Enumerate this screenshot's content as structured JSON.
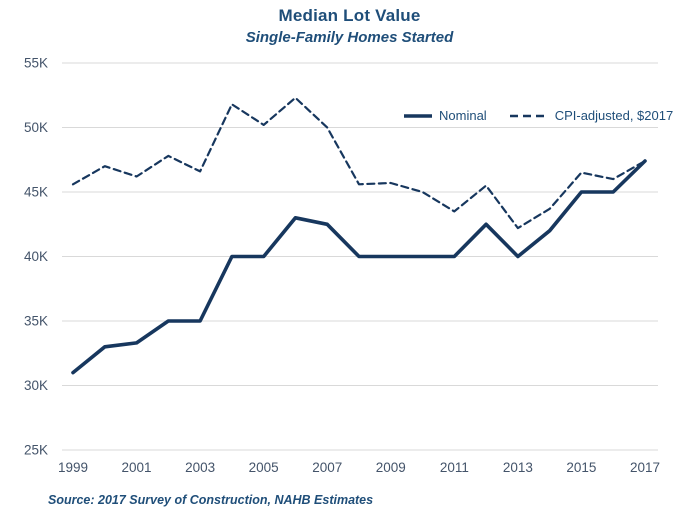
{
  "header": {
    "title": "Median Lot Value",
    "subtitle": "Single-Family Homes Started"
  },
  "legend": {
    "items": [
      {
        "label": "Nominal",
        "style": "solid"
      },
      {
        "label": "CPI-adjusted, $2017",
        "style": "dashed"
      }
    ]
  },
  "footer": {
    "source": "Source: 2017 Survey of Construction, NAHB Estimates"
  },
  "colors": {
    "line": "#17375E",
    "title_text": "#1F4E79",
    "axis_text": "#44546A",
    "gridline": "#D9D9D9",
    "background": "#FFFFFF"
  },
  "chart_data": {
    "type": "line",
    "title": "Median Lot Value",
    "subtitle": "Single-Family Homes Started",
    "x": [
      1999,
      2000,
      2001,
      2002,
      2003,
      2004,
      2005,
      2006,
      2007,
      2008,
      2009,
      2010,
      2011,
      2012,
      2013,
      2014,
      2015,
      2016,
      2017
    ],
    "series": [
      {
        "name": "Nominal",
        "style": "solid",
        "values": [
          31,
          33,
          33.3,
          35,
          35,
          40,
          40,
          43,
          42.5,
          40,
          40,
          40,
          40,
          42.5,
          40,
          42,
          45,
          45,
          47.4
        ]
      },
      {
        "name": "CPI-adjusted, $2017",
        "style": "dashed",
        "values": [
          45.6,
          47,
          46.2,
          47.8,
          46.6,
          51.8,
          50.2,
          52.3,
          50,
          45.6,
          45.7,
          45,
          43.5,
          45.5,
          42.2,
          43.7,
          46.5,
          46,
          47.4
        ]
      }
    ],
    "y_ticks": [
      {
        "value": 55,
        "label": "55K"
      },
      {
        "value": 50,
        "label": "50K"
      },
      {
        "value": 45,
        "label": "45K"
      },
      {
        "value": 40,
        "label": "40K"
      },
      {
        "value": 35,
        "label": "35K"
      },
      {
        "value": 30,
        "label": "30K"
      },
      {
        "value": 25,
        "label": "25K"
      }
    ],
    "x_ticks": [
      1999,
      2001,
      2003,
      2005,
      2007,
      2009,
      2011,
      2013,
      2015,
      2017
    ],
    "ylim": [
      25,
      55
    ],
    "xlim": [
      1999,
      2017
    ],
    "grid": true,
    "legend_position": "top-right",
    "units": "USD thousands"
  }
}
